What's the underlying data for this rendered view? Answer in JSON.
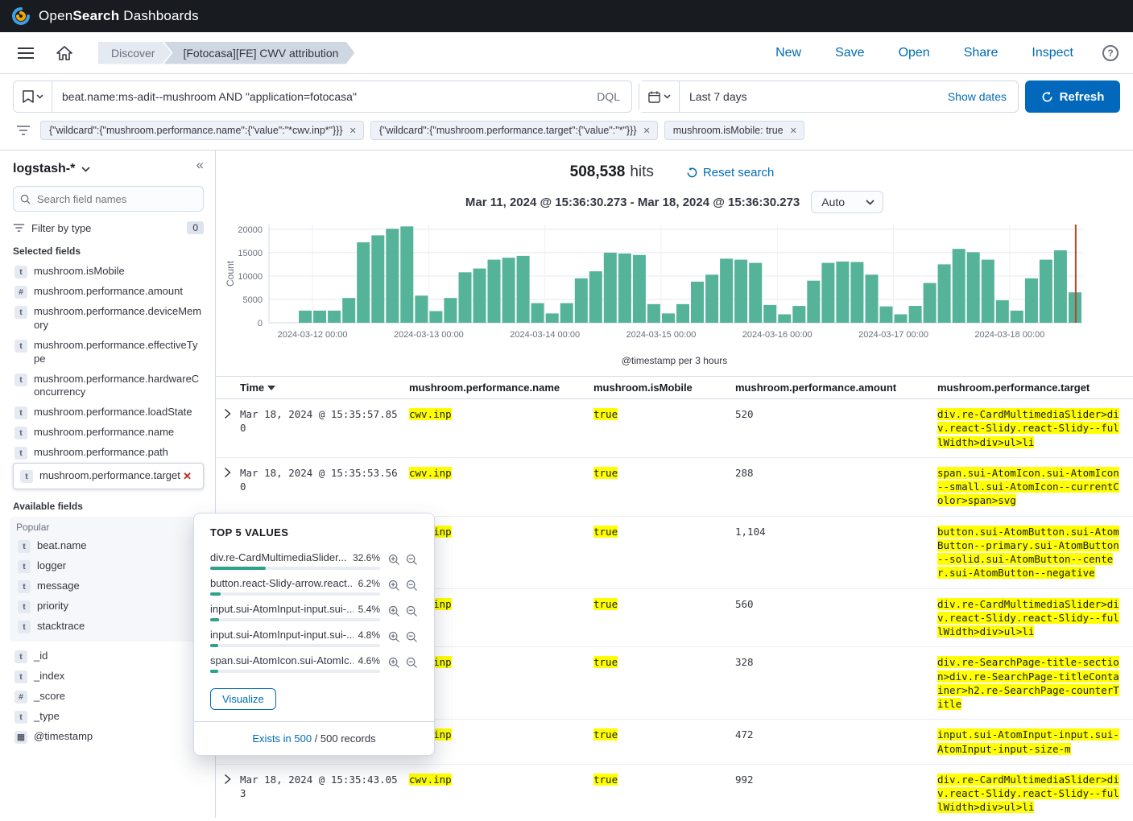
{
  "branding": {
    "title_parts": [
      "Open",
      "Search",
      " Dashboards"
    ]
  },
  "navbar": {
    "breadcrumbs": [
      {
        "label": "Discover"
      },
      {
        "label": "[Fotocasa][FE] CWV attribution"
      }
    ],
    "actions": [
      {
        "label": "New"
      },
      {
        "label": "Save"
      },
      {
        "label": "Open"
      },
      {
        "label": "Share"
      },
      {
        "label": "Inspect"
      }
    ],
    "help_glyph": "?"
  },
  "querybar": {
    "query": "beat.name:ms-adit--mushroom AND \"application=fotocasa\"",
    "language": "DQL",
    "time_range": "Last 7 days",
    "show_dates_label": "Show dates",
    "refresh_label": "Refresh"
  },
  "filters": {
    "pills": [
      {
        "label": "{\"wildcard\":{\"mushroom.performance.name\":{\"value\":\"*cwv.inp*\"}}}"
      },
      {
        "label": "{\"wildcard\":{\"mushroom.performance.target\":{\"value\":\"*\"}}}"
      },
      {
        "label": "mushroom.isMobile: true"
      }
    ]
  },
  "sidebar": {
    "index_pattern": "logstash-*",
    "search_placeholder": "Search field names",
    "filter_by_type_label": "Filter by type",
    "filter_count": "0",
    "selected_heading": "Selected fields",
    "available_heading": "Available fields",
    "popular_label": "Popular",
    "selected_fields": [
      {
        "type": "t",
        "name": "mushroom.isMobile"
      },
      {
        "type": "#",
        "name": "mushroom.performance.amount"
      },
      {
        "type": "t",
        "name": "mushroom.performance.deviceMemory"
      },
      {
        "type": "t",
        "name": "mushroom.performance.effectiveType"
      },
      {
        "type": "t",
        "name": "mushroom.performance.hardwareConcurrency"
      },
      {
        "type": "t",
        "name": "mushroom.performance.loadState"
      },
      {
        "type": "t",
        "name": "mushroom.performance.name"
      },
      {
        "type": "t",
        "name": "mushroom.performance.path"
      },
      {
        "type": "t",
        "name": "mushroom.performance.target",
        "selected": true
      }
    ],
    "popular_fields": [
      {
        "type": "t",
        "name": "beat.name"
      },
      {
        "type": "t",
        "name": "logger"
      },
      {
        "type": "t",
        "name": "message"
      },
      {
        "type": "t",
        "name": "priority"
      },
      {
        "type": "t",
        "name": "stacktrace"
      }
    ],
    "meta_fields": [
      {
        "type": "t",
        "name": "_id"
      },
      {
        "type": "t",
        "name": "_index"
      },
      {
        "type": "#",
        "name": "_score"
      },
      {
        "type": "t",
        "name": "_type"
      },
      {
        "type": "date",
        "name": "@timestamp"
      }
    ]
  },
  "popover": {
    "title": "TOP 5 VALUES",
    "values": [
      {
        "label": "div.re-CardMultimediaSlider...",
        "pct": 32.6,
        "pct_label": "32.6%"
      },
      {
        "label": "button.react-Slidy-arrow.react...",
        "pct": 6.2,
        "pct_label": "6.2%"
      },
      {
        "label": "input.sui-AtomInput-input.sui-...",
        "pct": 5.4,
        "pct_label": "5.4%"
      },
      {
        "label": "input.sui-AtomInput-input.sui-...",
        "pct": 4.8,
        "pct_label": "4.8%"
      },
      {
        "label": "span.sui-AtomIcon.sui-AtomIc...",
        "pct": 4.6,
        "pct_label": "4.6%"
      }
    ],
    "visualize_label": "Visualize",
    "exists_link": "Exists in 500",
    "records_suffix": " / 500 records",
    "bar_color": "#2ea189"
  },
  "results": {
    "hits_count": "508,538",
    "hits_label": "hits",
    "reset_label": "Reset search",
    "time_range_title": "Mar 11, 2024 @ 15:36:30.273 - Mar 18, 2024 @ 15:36:30.273",
    "interval": "Auto"
  },
  "table": {
    "headers": [
      "Time",
      "mushroom.performance.name",
      "mushroom.isMobile",
      "mushroom.performance.amount",
      "mushroom.performance.target"
    ],
    "rows": [
      {
        "time": "Mar 18, 2024 @ 15:35:57.850",
        "name": "cwv.inp",
        "is_mobile": "true",
        "amount": "520",
        "target": "div.re-CardMultimediaSlider>div.react-Slidy.react-Slidy--fullWidth>div>ul>li"
      },
      {
        "time": "Mar 18, 2024 @ 15:35:53.560",
        "name": "cwv.inp",
        "is_mobile": "true",
        "amount": "288",
        "target": "span.sui-AtomIcon.sui-AtomIcon--small.sui-AtomIcon--currentColor>span>svg"
      },
      {
        "time": "",
        "name": "cwv.inp",
        "is_mobile": "true",
        "amount": "1,104",
        "target": "button.sui-AtomButton.sui-AtomButton--primary.sui-AtomButton--solid.sui-AtomButton--center.sui-AtomButton--negative"
      },
      {
        "time": "",
        "name": "cwv.inp",
        "is_mobile": "true",
        "amount": "560",
        "target": "div.re-CardMultimediaSlider>div.react-Slidy.react-Slidy--fullWidth>div>ul>li"
      },
      {
        "time": "",
        "name": "cwv.inp",
        "is_mobile": "true",
        "amount": "328",
        "target": "div.re-SearchPage-title-section>div.re-SearchPage-titleContainer>h2.re-SearchPage-counterTitle"
      },
      {
        "time": "",
        "name": "cwv.inp",
        "is_mobile": "true",
        "amount": "472",
        "target": "input.sui-AtomInput-input.sui-AtomInput-input-size-m"
      },
      {
        "time": "Mar 18, 2024 @ 15:35:43.053",
        "name": "cwv.inp",
        "is_mobile": "true",
        "amount": "992",
        "target": "div.re-CardMultimediaSlider>div.react-Slidy.react-Slidy--fullWidth>div>ul>li"
      }
    ]
  },
  "chart_data": {
    "type": "bar",
    "title": "",
    "xlabel": "@timestamp per 3 hours",
    "ylabel": "Count",
    "ylim": [
      0,
      21000
    ],
    "y_ticks": [
      0,
      5000,
      10000,
      15000,
      20000
    ],
    "x_tick_labels": [
      "2024-03-12 00:00",
      "2024-03-13 00:00",
      "2024-03-14 00:00",
      "2024-03-15 00:00",
      "2024-03-16 00:00",
      "2024-03-17 00:00",
      "2024-03-18 00:00"
    ],
    "x_tick_bins": [
      3,
      11,
      19,
      27,
      35,
      43,
      51
    ],
    "bin_hours": 3,
    "values": [
      0,
      0,
      2600,
      2600,
      2600,
      5300,
      17200,
      18700,
      20100,
      20600,
      5800,
      2500,
      5300,
      10800,
      11600,
      13500,
      13900,
      14300,
      4200,
      2000,
      4200,
      9500,
      11000,
      15000,
      14800,
      14500,
      4000,
      2000,
      4000,
      8800,
      10300,
      13700,
      13500,
      12800,
      3800,
      1800,
      3600,
      9000,
      12800,
      13100,
      13000,
      10300,
      3500,
      1800,
      3600,
      8500,
      12500,
      15800,
      15100,
      13500,
      4800,
      2600,
      9500,
      13500,
      15500,
      6500
    ],
    "bar_color": "#54b399",
    "now_line_color": "#b9472c",
    "now_line_bin": 55.55,
    "grid": true,
    "total_hits": 508538
  }
}
